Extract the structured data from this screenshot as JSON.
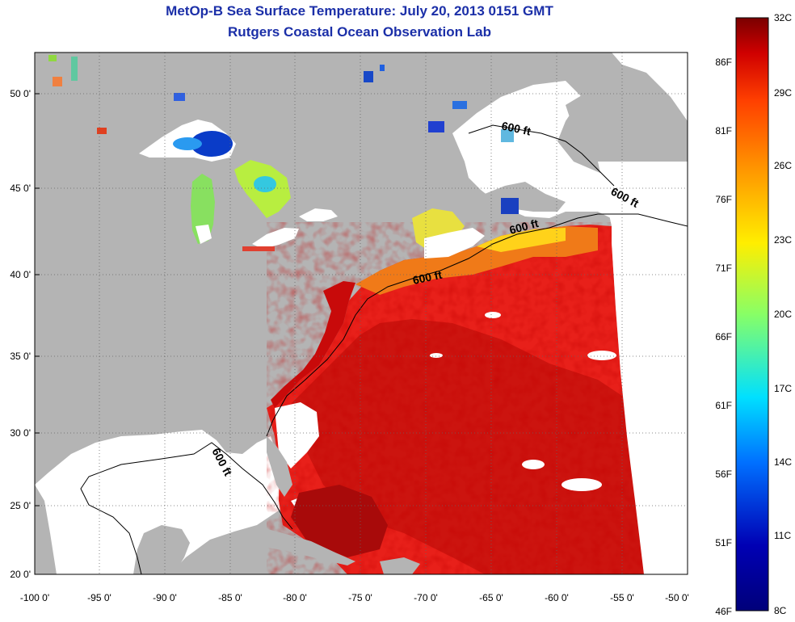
{
  "title": {
    "line1": "MetOp-B Sea Surface Temperature:  July 20, 2013 0151 GMT",
    "line2": "Rutgers Coastal Ocean Observation Lab"
  },
  "map": {
    "lat_ticks": [
      "50 0'",
      "45 0'",
      "40 0'",
      "35 0'",
      "30 0'",
      "25 0'",
      "20 0'"
    ],
    "lon_ticks": [
      "-100 0'",
      "-95 0'",
      "-90 0'",
      "-85 0'",
      "-80 0'",
      "-75 0'",
      "-70 0'",
      "-65 0'",
      "-60 0'",
      "-55 0'",
      "-50 0'"
    ],
    "contour_label": "600 ft",
    "colors": {
      "land": "#b4b4b4",
      "no_data": "#ffffff",
      "warm_ocean": "#e8201a",
      "hot_ocean": "#c4120c",
      "shelf_orange": "#f07a18"
    }
  },
  "colorbar": {
    "celsius_labels": [
      "32C",
      "29C",
      "26C",
      "23C",
      "20C",
      "17C",
      "14C",
      "11C",
      "8C"
    ],
    "fahrenheit_labels": [
      "86F",
      "81F",
      "76F",
      "71F",
      "66F",
      "61F",
      "56F",
      "51F",
      "46F"
    ],
    "colors": [
      "#7a0000",
      "#d00000",
      "#ff4000",
      "#ff9900",
      "#ffee00",
      "#88ff66",
      "#00e0ff",
      "#0070ff",
      "#0000b4",
      "#00007a"
    ]
  }
}
